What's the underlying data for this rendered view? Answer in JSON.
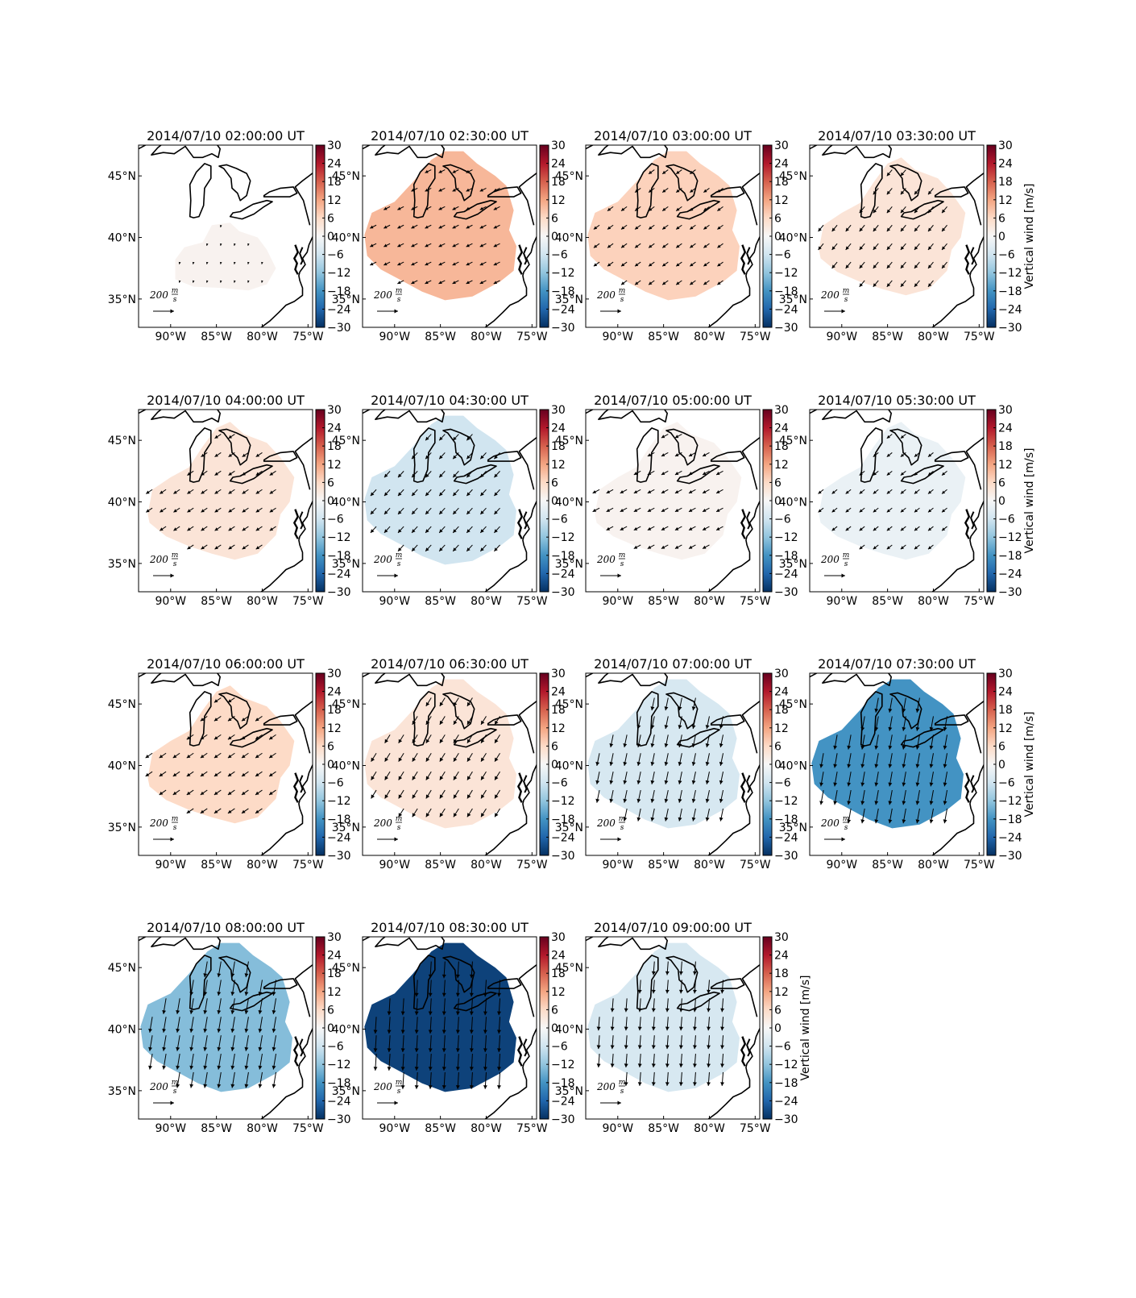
{
  "figure": {
    "colorbar": {
      "ticks": [
        "30",
        "24",
        "18",
        "12",
        "6",
        "0",
        "−6",
        "−12",
        "−18",
        "−24",
        "−30"
      ],
      "label": "Vertical wind [m/s]",
      "colormap": [
        "#67001f",
        "#b2182b",
        "#d6604d",
        "#f4a582",
        "#fddbc7",
        "#f7f7f7",
        "#d1e5f0",
        "#92c5de",
        "#4393c3",
        "#2166ac",
        "#053061"
      ]
    },
    "axes": {
      "xticks": [
        "90°W",
        "85°W",
        "80°W",
        "75°W"
      ],
      "yticks": [
        "45°N",
        "40°N",
        "35°N"
      ]
    },
    "reference_arrow": {
      "number": "200",
      "unit_top": "m",
      "unit_bottom": "s"
    },
    "colors": {
      "coastline": "#000000",
      "arrow": "#000000"
    }
  },
  "chart_data": [
    {
      "type": "heatmap",
      "title": "2014/07/10 02:00:00 UT",
      "vertical_wind": 1,
      "wind_u": -5,
      "wind_v": -20,
      "region": "small",
      "show_cbar_label": false
    },
    {
      "type": "heatmap",
      "title": "2014/07/10 02:30:00 UT",
      "vertical_wind": 10,
      "wind_u": -60,
      "wind_v": -30,
      "region": "large",
      "show_cbar_label": false
    },
    {
      "type": "heatmap",
      "title": "2014/07/10 03:00:00 UT",
      "vertical_wind": 7,
      "wind_u": -55,
      "wind_v": -40,
      "region": "large",
      "show_cbar_label": false
    },
    {
      "type": "heatmap",
      "title": "2014/07/10 03:30:00 UT",
      "vertical_wind": 4,
      "wind_u": -50,
      "wind_v": -60,
      "region": "medium",
      "show_cbar_label": true
    },
    {
      "type": "heatmap",
      "title": "2014/07/10 04:00:00 UT",
      "vertical_wind": 4,
      "wind_u": -60,
      "wind_v": -40,
      "region": "medium",
      "show_cbar_label": false
    },
    {
      "type": "heatmap",
      "title": "2014/07/10 04:30:00 UT",
      "vertical_wind": -6,
      "wind_u": -55,
      "wind_v": -60,
      "region": "large",
      "show_cbar_label": false
    },
    {
      "type": "heatmap",
      "title": "2014/07/10 05:00:00 UT",
      "vertical_wind": 1,
      "wind_u": -65,
      "wind_v": -35,
      "region": "medium",
      "show_cbar_label": false
    },
    {
      "type": "heatmap",
      "title": "2014/07/10 05:30:00 UT",
      "vertical_wind": -2,
      "wind_u": -50,
      "wind_v": -40,
      "region": "medium",
      "show_cbar_label": true
    },
    {
      "type": "heatmap",
      "title": "2014/07/10 06:00:00 UT",
      "vertical_wind": 6,
      "wind_u": -65,
      "wind_v": -45,
      "region": "medium",
      "show_cbar_label": false
    },
    {
      "type": "heatmap",
      "title": "2014/07/10 06:30:00 UT",
      "vertical_wind": 4,
      "wind_u": -50,
      "wind_v": -80,
      "region": "large",
      "show_cbar_label": false
    },
    {
      "type": "heatmap",
      "title": "2014/07/10 07:00:00 UT",
      "vertical_wind": -5,
      "wind_u": -25,
      "wind_v": -120,
      "region": "large",
      "show_cbar_label": false
    },
    {
      "type": "heatmap",
      "title": "2014/07/10 07:30:00 UT",
      "vertical_wind": -18,
      "wind_u": -25,
      "wind_v": -140,
      "region": "large",
      "show_cbar_label": true
    },
    {
      "type": "heatmap",
      "title": "2014/07/10 08:00:00 UT",
      "vertical_wind": -13,
      "wind_u": -25,
      "wind_v": -150,
      "region": "large",
      "show_cbar_label": false
    },
    {
      "type": "heatmap",
      "title": "2014/07/10 08:30:00 UT",
      "vertical_wind": -28,
      "wind_u": -10,
      "wind_v": -160,
      "region": "large",
      "show_cbar_label": false
    },
    {
      "type": "heatmap",
      "title": "2014/07/10 09:00:00 UT",
      "vertical_wind": -5,
      "wind_u": -10,
      "wind_v": -130,
      "region": "large",
      "show_cbar_label": true
    }
  ]
}
